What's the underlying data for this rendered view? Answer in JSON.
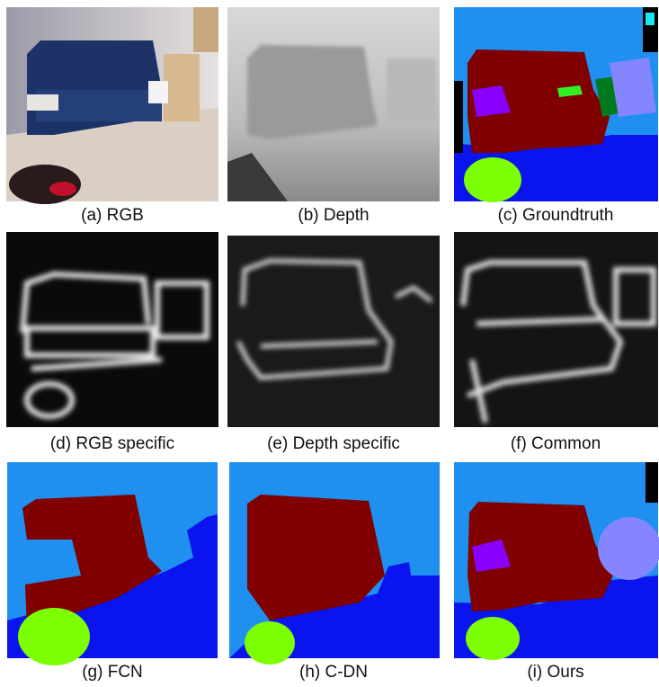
{
  "panels": [
    {
      "caption": "(a) RGB"
    },
    {
      "caption": "(b) Depth"
    },
    {
      "caption": "(c) Groundtruth"
    },
    {
      "caption": "(d) RGB specific"
    },
    {
      "caption": "(e) Depth specific"
    },
    {
      "caption": "(f) Common"
    },
    {
      "caption": "(g) FCN"
    },
    {
      "caption": "(h) C-DN"
    },
    {
      "caption": "(i) Ours"
    }
  ]
}
